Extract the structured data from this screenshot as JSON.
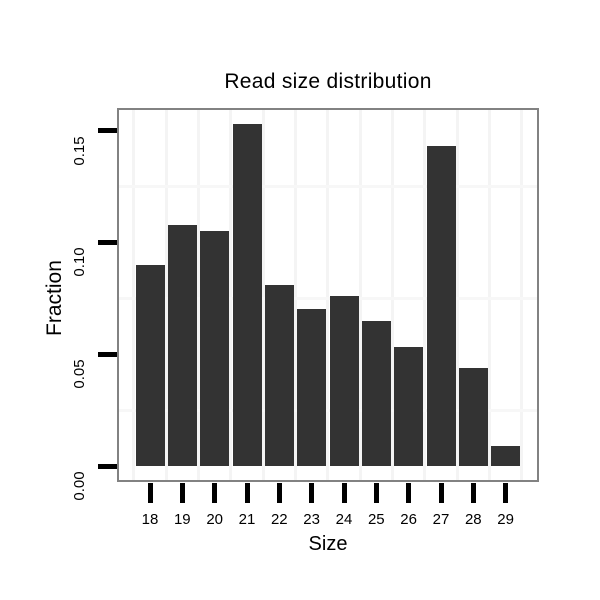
{
  "figure": {
    "background": "#ffffff"
  },
  "chart_data": {
    "type": "bar",
    "title": "Read size distribution",
    "xlabel": "Size",
    "ylabel": "Fraction",
    "categories": [
      "18",
      "19",
      "20",
      "21",
      "22",
      "23",
      "24",
      "25",
      "26",
      "27",
      "28",
      "29"
    ],
    "values": [
      0.09,
      0.108,
      0.105,
      0.153,
      0.081,
      0.07,
      0.076,
      0.065,
      0.053,
      0.143,
      0.044,
      0.009
    ],
    "y_ticks": [
      {
        "value": 0.0,
        "label": "0.00"
      },
      {
        "value": 0.05,
        "label": "0.05"
      },
      {
        "value": 0.1,
        "label": "0.10"
      },
      {
        "value": 0.15,
        "label": "0.15"
      }
    ],
    "minor_gridlines_y": [
      0.025,
      0.075,
      0.125
    ],
    "ylim": [
      -0.006,
      0.159
    ],
    "grid": "faint horizontal lines at 0.025/0.075/0.125 and vertical category separators",
    "legend_position": "none",
    "colors": {
      "bar": "#333333",
      "panel_border": "#828282",
      "gridline": "#f4f4f4",
      "axis_tick": "#000000",
      "text": "#000000",
      "background": "#ffffff"
    }
  }
}
